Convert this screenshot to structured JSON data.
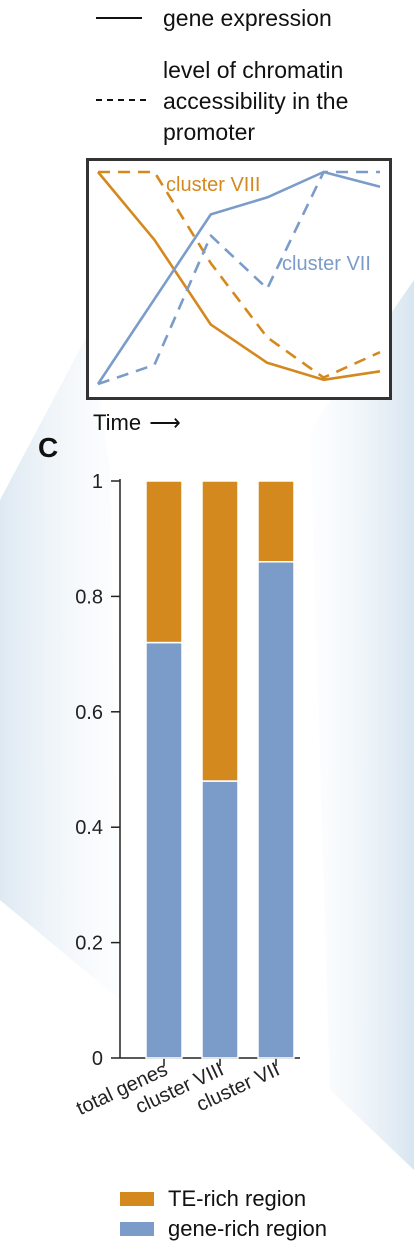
{
  "colors": {
    "orange": "#D4891E",
    "blue": "#7B9CC9",
    "wedge": "#C9DCEB"
  },
  "top_legend": {
    "solid_label": "gene expression",
    "dashed_label_lines": [
      "level of chromatin",
      "accessibility in the",
      "promoter"
    ]
  },
  "inset": {
    "type": "line",
    "x_label": "Time",
    "x_arrow": "⟶",
    "series": [
      {
        "name": "cluster VIII",
        "style": "solid",
        "color": "#D4891E",
        "values": [
          1.0,
          0.68,
          0.28,
          0.1,
          0.02,
          0.06
        ]
      },
      {
        "name": "cluster VIII",
        "style": "dashed",
        "color": "#D4891E",
        "values": [
          1.0,
          1.0,
          0.57,
          0.22,
          0.03,
          0.15
        ]
      },
      {
        "name": "cluster VII",
        "style": "solid",
        "color": "#7B9CC9",
        "values": [
          0.0,
          0.4,
          0.8,
          0.88,
          1.0,
          0.93
        ]
      },
      {
        "name": "cluster VII",
        "style": "dashed",
        "color": "#7B9CC9",
        "values": [
          0.0,
          0.09,
          0.7,
          0.45,
          1.0,
          1.0
        ]
      }
    ],
    "labels": [
      "cluster VIII",
      "cluster VII"
    ]
  },
  "panel_letter": "C",
  "chart_data": {
    "type": "bar",
    "stacked": true,
    "categories": [
      "total genes",
      "cluster VIII",
      "cluster VII"
    ],
    "series": [
      {
        "name": "gene-rich region",
        "color": "#7B9CC9",
        "values": [
          0.72,
          0.48,
          0.86
        ]
      },
      {
        "name": "TE-rich region",
        "color": "#D4891E",
        "values": [
          0.28,
          0.52,
          0.14
        ]
      }
    ],
    "ylim": [
      0,
      1
    ],
    "yticks": [
      0,
      0.2,
      0.4,
      0.6,
      0.8,
      1
    ],
    "ytick_labels": [
      "0",
      "0.2",
      "0.4",
      "0.6",
      "0.8",
      "1"
    ],
    "grid": false,
    "legend": "bottom"
  },
  "legend": [
    {
      "label": "TE-rich region",
      "color": "#D4891E"
    },
    {
      "label": "gene-rich region",
      "color": "#7B9CC9"
    }
  ]
}
